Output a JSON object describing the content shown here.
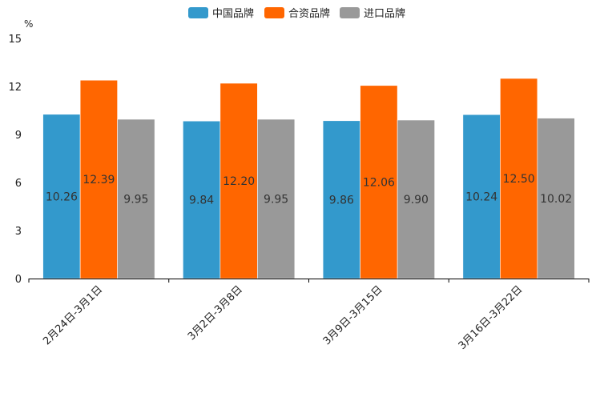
{
  "chart_data": {
    "type": "bar",
    "title": "",
    "unit": "%",
    "xlabel": "",
    "ylabel": "%",
    "ylim": [
      0,
      15
    ],
    "yticks": [
      0,
      3,
      6,
      9,
      12,
      15
    ],
    "grid": false,
    "legend_position": "top-center",
    "categories": [
      "2月24日-3月1日",
      "3月2日-3月8日",
      "3月9日-3月15日",
      "3月16日-3月22日"
    ],
    "series": [
      {
        "name": "中国品牌",
        "color": "#3399cc",
        "values": [
          10.26,
          9.84,
          9.86,
          10.24
        ],
        "labels": [
          "10.26",
          "9.84",
          "9.86",
          "10.24"
        ]
      },
      {
        "name": "合资品牌",
        "color": "#ff6600",
        "values": [
          12.39,
          12.2,
          12.06,
          12.5
        ],
        "labels": [
          "12.39",
          "12.20",
          "12.06",
          "12.50"
        ]
      },
      {
        "name": "进口品牌",
        "color": "#999999",
        "values": [
          9.95,
          9.95,
          9.9,
          10.02
        ],
        "labels": [
          "9.95",
          "9.95",
          "9.90",
          "10.02"
        ]
      }
    ]
  }
}
